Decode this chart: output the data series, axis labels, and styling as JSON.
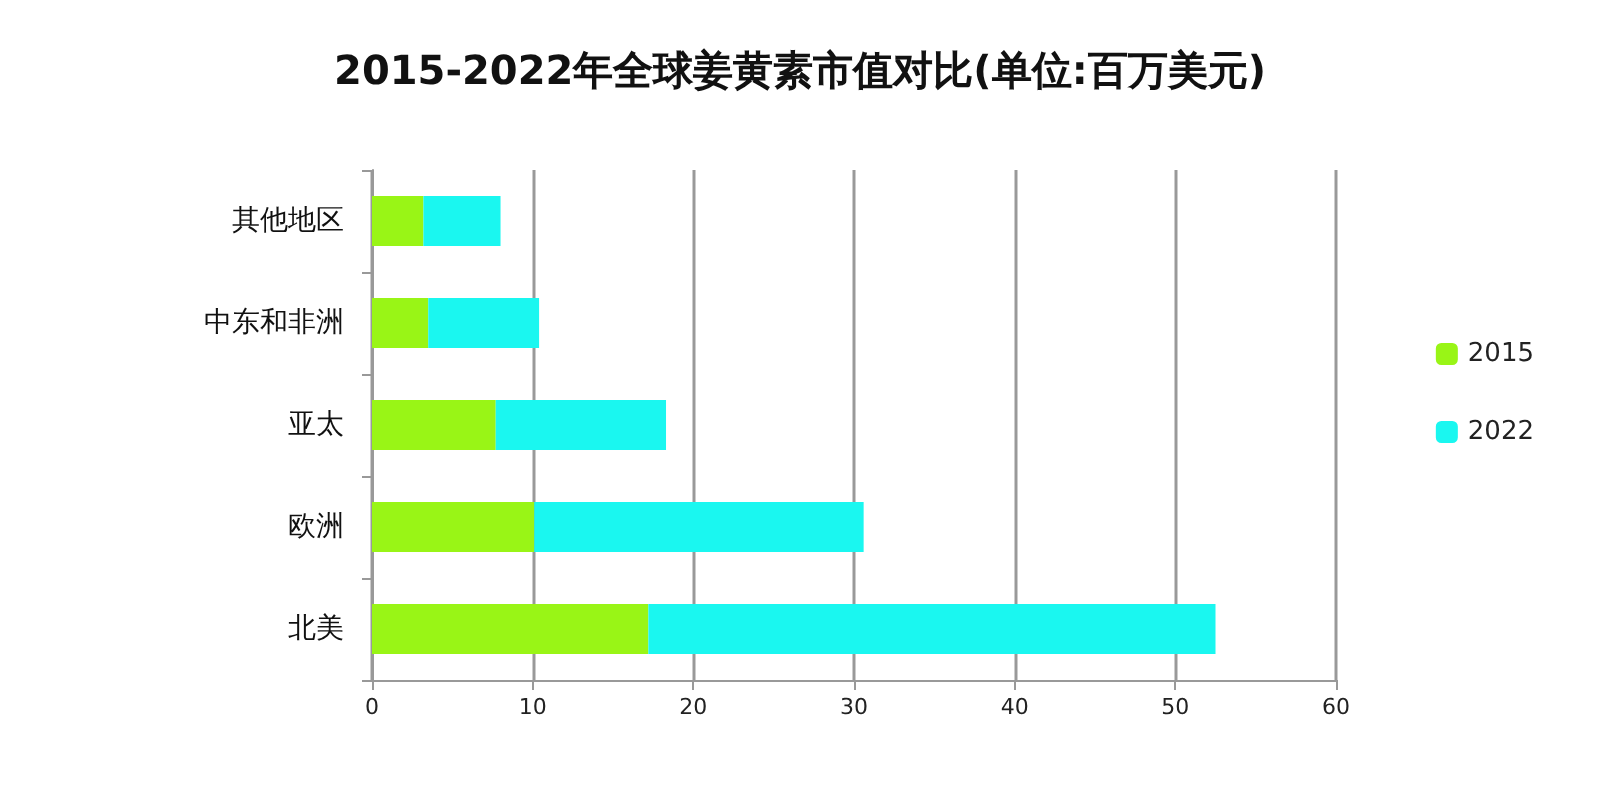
{
  "chart_data": {
    "type": "bar",
    "orientation": "horizontal",
    "stacked": true,
    "title": "2015-2022年全球姜黄素市值对比(单位:百万美元)",
    "categories": [
      "其他地区",
      "中东和非洲",
      "亚太",
      "欧洲",
      "北美"
    ],
    "series": [
      {
        "name": "2015",
        "color": "#99f516",
        "values": [
          3.2,
          3.5,
          7.7,
          10.1,
          17.2
        ]
      },
      {
        "name": "2022",
        "color": "#1af7f0",
        "values": [
          4.8,
          6.9,
          10.6,
          20.5,
          35.3
        ]
      }
    ],
    "xlim": [
      0,
      60
    ],
    "xticks": [
      0,
      10,
      20,
      30,
      40,
      50,
      60
    ],
    "grid": "x",
    "legend": "right"
  }
}
